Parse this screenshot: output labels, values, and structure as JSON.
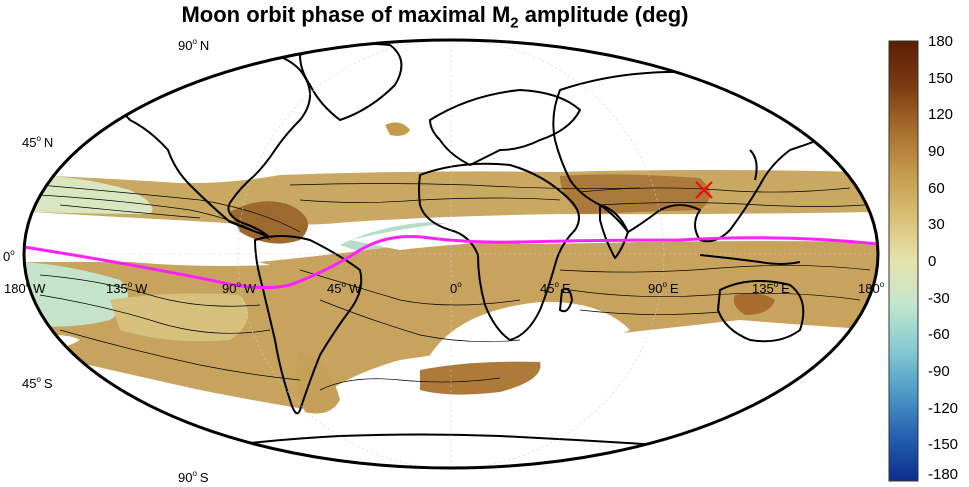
{
  "title_main": "Moon orbit phase of maximal M",
  "title_sub": "2",
  "title_tail": " amplitude (deg)",
  "lat_labels": [
    {
      "deg": "90",
      "hemi": "N"
    },
    {
      "deg": "45",
      "hemi": "N"
    },
    {
      "deg": "0",
      "hemi": ""
    },
    {
      "deg": "45",
      "hemi": "S"
    },
    {
      "deg": "90",
      "hemi": "S"
    }
  ],
  "lon_labels": [
    {
      "deg": "180",
      "hemi": "W"
    },
    {
      "deg": "135",
      "hemi": "W"
    },
    {
      "deg": "90",
      "hemi": "W"
    },
    {
      "deg": "45",
      "hemi": "W"
    },
    {
      "deg": "0",
      "hemi": ""
    },
    {
      "deg": "45",
      "hemi": "E"
    },
    {
      "deg": "90",
      "hemi": "E"
    },
    {
      "deg": "135",
      "hemi": "E"
    },
    {
      "deg": "180",
      "hemi": ""
    }
  ],
  "colorbar": {
    "ticks": [
      "180",
      "150",
      "120",
      "90",
      "60",
      "30",
      "0",
      "-30",
      "-60",
      "-90",
      "-120",
      "-150",
      "-180"
    ],
    "colors": [
      "#0b2e8c",
      "#2560b0",
      "#4c9ac8",
      "#86cbd2",
      "#c2e6cc",
      "#e6e3ad",
      "#d8c074",
      "#c49a4e",
      "#a66d2c",
      "#7a3a12",
      "#5a1e04"
    ]
  },
  "colors": {
    "path": "#ff22ff",
    "marker": "#ff0000",
    "coast": "#000000"
  }
}
